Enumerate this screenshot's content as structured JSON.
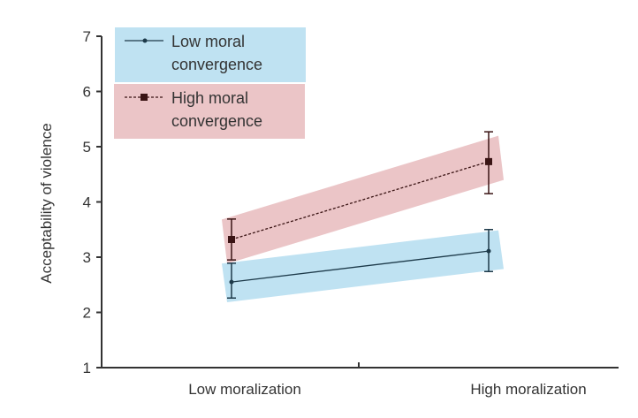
{
  "chart_data": {
    "type": "line",
    "title": "",
    "xlabel": "",
    "ylabel": "Acceptability of violence",
    "categories": [
      "Low moralization",
      "High moralization"
    ],
    "ylim": [
      1,
      7
    ],
    "yticks": [
      1,
      2,
      3,
      4,
      5,
      6,
      7
    ],
    "grid": false,
    "legend_placement": "top-left",
    "series": [
      {
        "name": "Low moral convergence",
        "name_lines": [
          "Low moral",
          "convergence"
        ],
        "values": [
          2.55,
          3.11
        ],
        "error_low": [
          2.26,
          2.74
        ],
        "error_high": [
          2.89,
          3.5
        ],
        "line_style": "solid",
        "marker": "dot",
        "line_color": "#1d3a4a",
        "band_color": "#bfe2f2"
      },
      {
        "name": "High moral convergence",
        "name_lines": [
          "High moral",
          "convergence"
        ],
        "values": [
          3.32,
          4.73
        ],
        "error_low": [
          2.95,
          4.15
        ],
        "error_high": [
          3.69,
          5.27
        ],
        "line_style": "dashed",
        "marker": "square",
        "line_color": "#3a1414",
        "band_color": "#ebc5c7"
      }
    ]
  }
}
